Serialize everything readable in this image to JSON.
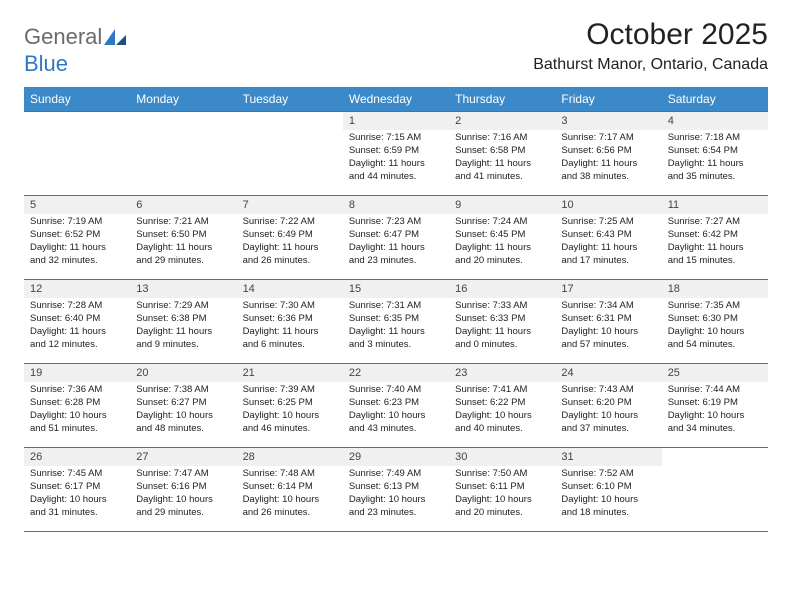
{
  "brand": {
    "word1": "General",
    "word2": "Blue"
  },
  "title": "October 2025",
  "location": "Bathurst Manor, Ontario, Canada",
  "colors": {
    "header_bg": "#3b89c9",
    "header_text": "#ffffff",
    "border": "#2f78c2",
    "daynum_bg": "#f0f0f0",
    "body_text": "#222222",
    "brand_gray": "#6b6b6b",
    "brand_blue": "#2f78c2",
    "page_bg": "#ffffff"
  },
  "weekdays": [
    "Sunday",
    "Monday",
    "Tuesday",
    "Wednesday",
    "Thursday",
    "Friday",
    "Saturday"
  ],
  "days": [
    {
      "n": "1",
      "sunrise": "7:15 AM",
      "sunset": "6:59 PM",
      "daylight": "11 hours and 44 minutes."
    },
    {
      "n": "2",
      "sunrise": "7:16 AM",
      "sunset": "6:58 PM",
      "daylight": "11 hours and 41 minutes."
    },
    {
      "n": "3",
      "sunrise": "7:17 AM",
      "sunset": "6:56 PM",
      "daylight": "11 hours and 38 minutes."
    },
    {
      "n": "4",
      "sunrise": "7:18 AM",
      "sunset": "6:54 PM",
      "daylight": "11 hours and 35 minutes."
    },
    {
      "n": "5",
      "sunrise": "7:19 AM",
      "sunset": "6:52 PM",
      "daylight": "11 hours and 32 minutes."
    },
    {
      "n": "6",
      "sunrise": "7:21 AM",
      "sunset": "6:50 PM",
      "daylight": "11 hours and 29 minutes."
    },
    {
      "n": "7",
      "sunrise": "7:22 AM",
      "sunset": "6:49 PM",
      "daylight": "11 hours and 26 minutes."
    },
    {
      "n": "8",
      "sunrise": "7:23 AM",
      "sunset": "6:47 PM",
      "daylight": "11 hours and 23 minutes."
    },
    {
      "n": "9",
      "sunrise": "7:24 AM",
      "sunset": "6:45 PM",
      "daylight": "11 hours and 20 minutes."
    },
    {
      "n": "10",
      "sunrise": "7:25 AM",
      "sunset": "6:43 PM",
      "daylight": "11 hours and 17 minutes."
    },
    {
      "n": "11",
      "sunrise": "7:27 AM",
      "sunset": "6:42 PM",
      "daylight": "11 hours and 15 minutes."
    },
    {
      "n": "12",
      "sunrise": "7:28 AM",
      "sunset": "6:40 PM",
      "daylight": "11 hours and 12 minutes."
    },
    {
      "n": "13",
      "sunrise": "7:29 AM",
      "sunset": "6:38 PM",
      "daylight": "11 hours and 9 minutes."
    },
    {
      "n": "14",
      "sunrise": "7:30 AM",
      "sunset": "6:36 PM",
      "daylight": "11 hours and 6 minutes."
    },
    {
      "n": "15",
      "sunrise": "7:31 AM",
      "sunset": "6:35 PM",
      "daylight": "11 hours and 3 minutes."
    },
    {
      "n": "16",
      "sunrise": "7:33 AM",
      "sunset": "6:33 PM",
      "daylight": "11 hours and 0 minutes."
    },
    {
      "n": "17",
      "sunrise": "7:34 AM",
      "sunset": "6:31 PM",
      "daylight": "10 hours and 57 minutes."
    },
    {
      "n": "18",
      "sunrise": "7:35 AM",
      "sunset": "6:30 PM",
      "daylight": "10 hours and 54 minutes."
    },
    {
      "n": "19",
      "sunrise": "7:36 AM",
      "sunset": "6:28 PM",
      "daylight": "10 hours and 51 minutes."
    },
    {
      "n": "20",
      "sunrise": "7:38 AM",
      "sunset": "6:27 PM",
      "daylight": "10 hours and 48 minutes."
    },
    {
      "n": "21",
      "sunrise": "7:39 AM",
      "sunset": "6:25 PM",
      "daylight": "10 hours and 46 minutes."
    },
    {
      "n": "22",
      "sunrise": "7:40 AM",
      "sunset": "6:23 PM",
      "daylight": "10 hours and 43 minutes."
    },
    {
      "n": "23",
      "sunrise": "7:41 AM",
      "sunset": "6:22 PM",
      "daylight": "10 hours and 40 minutes."
    },
    {
      "n": "24",
      "sunrise": "7:43 AM",
      "sunset": "6:20 PM",
      "daylight": "10 hours and 37 minutes."
    },
    {
      "n": "25",
      "sunrise": "7:44 AM",
      "sunset": "6:19 PM",
      "daylight": "10 hours and 34 minutes."
    },
    {
      "n": "26",
      "sunrise": "7:45 AM",
      "sunset": "6:17 PM",
      "daylight": "10 hours and 31 minutes."
    },
    {
      "n": "27",
      "sunrise": "7:47 AM",
      "sunset": "6:16 PM",
      "daylight": "10 hours and 29 minutes."
    },
    {
      "n": "28",
      "sunrise": "7:48 AM",
      "sunset": "6:14 PM",
      "daylight": "10 hours and 26 minutes."
    },
    {
      "n": "29",
      "sunrise": "7:49 AM",
      "sunset": "6:13 PM",
      "daylight": "10 hours and 23 minutes."
    },
    {
      "n": "30",
      "sunrise": "7:50 AM",
      "sunset": "6:11 PM",
      "daylight": "10 hours and 20 minutes."
    },
    {
      "n": "31",
      "sunrise": "7:52 AM",
      "sunset": "6:10 PM",
      "daylight": "10 hours and 18 minutes."
    }
  ],
  "grid": {
    "first_weekday_index": 3,
    "rows": 5,
    "cols": 7
  },
  "labels": {
    "sunrise_prefix": "Sunrise: ",
    "sunset_prefix": "Sunset: ",
    "daylight_prefix": "Daylight: "
  }
}
